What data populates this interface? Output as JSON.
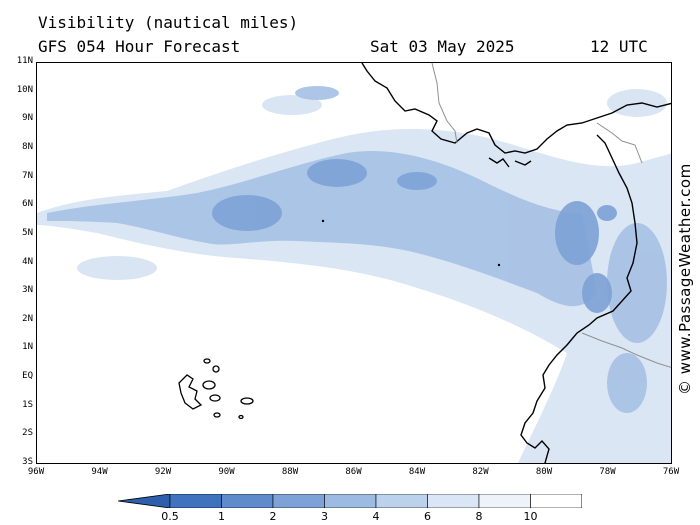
{
  "header": {
    "title_line1": "Visibility (nautical miles)",
    "title_line2": "GFS 054 Hour Forecast",
    "date": "Sat 03 May 2025",
    "time": "12 UTC"
  },
  "credit": "© www.PassageWeather.com",
  "lat_labels": [
    "11N",
    "10N",
    "9N",
    "8N",
    "7N",
    "6N",
    "5N",
    "4N",
    "3N",
    "2N",
    "1N",
    "EQ",
    "1S",
    "2S",
    "3S"
  ],
  "lon_labels": [
    "96W",
    "94W",
    "92W",
    "90W",
    "88W",
    "86W",
    "84W",
    "82W",
    "80W",
    "78W",
    "76W"
  ],
  "colorbar": {
    "labels": [
      "0.5",
      "1",
      "2",
      "3",
      "4",
      "6",
      "8",
      "10"
    ],
    "colors": [
      "#3f73be",
      "#5f8bcc",
      "#7ea2d7",
      "#9dbae2",
      "#bcd1ec",
      "#dae6f5",
      "#eef3fa",
      "#ffffff"
    ]
  },
  "map_colors": {
    "land_outline": "#000000",
    "border": "#909090",
    "low_vis": "#7ea2d7",
    "mid_vis": "#a9c3e6",
    "high_vis": "#d6e3f3"
  }
}
